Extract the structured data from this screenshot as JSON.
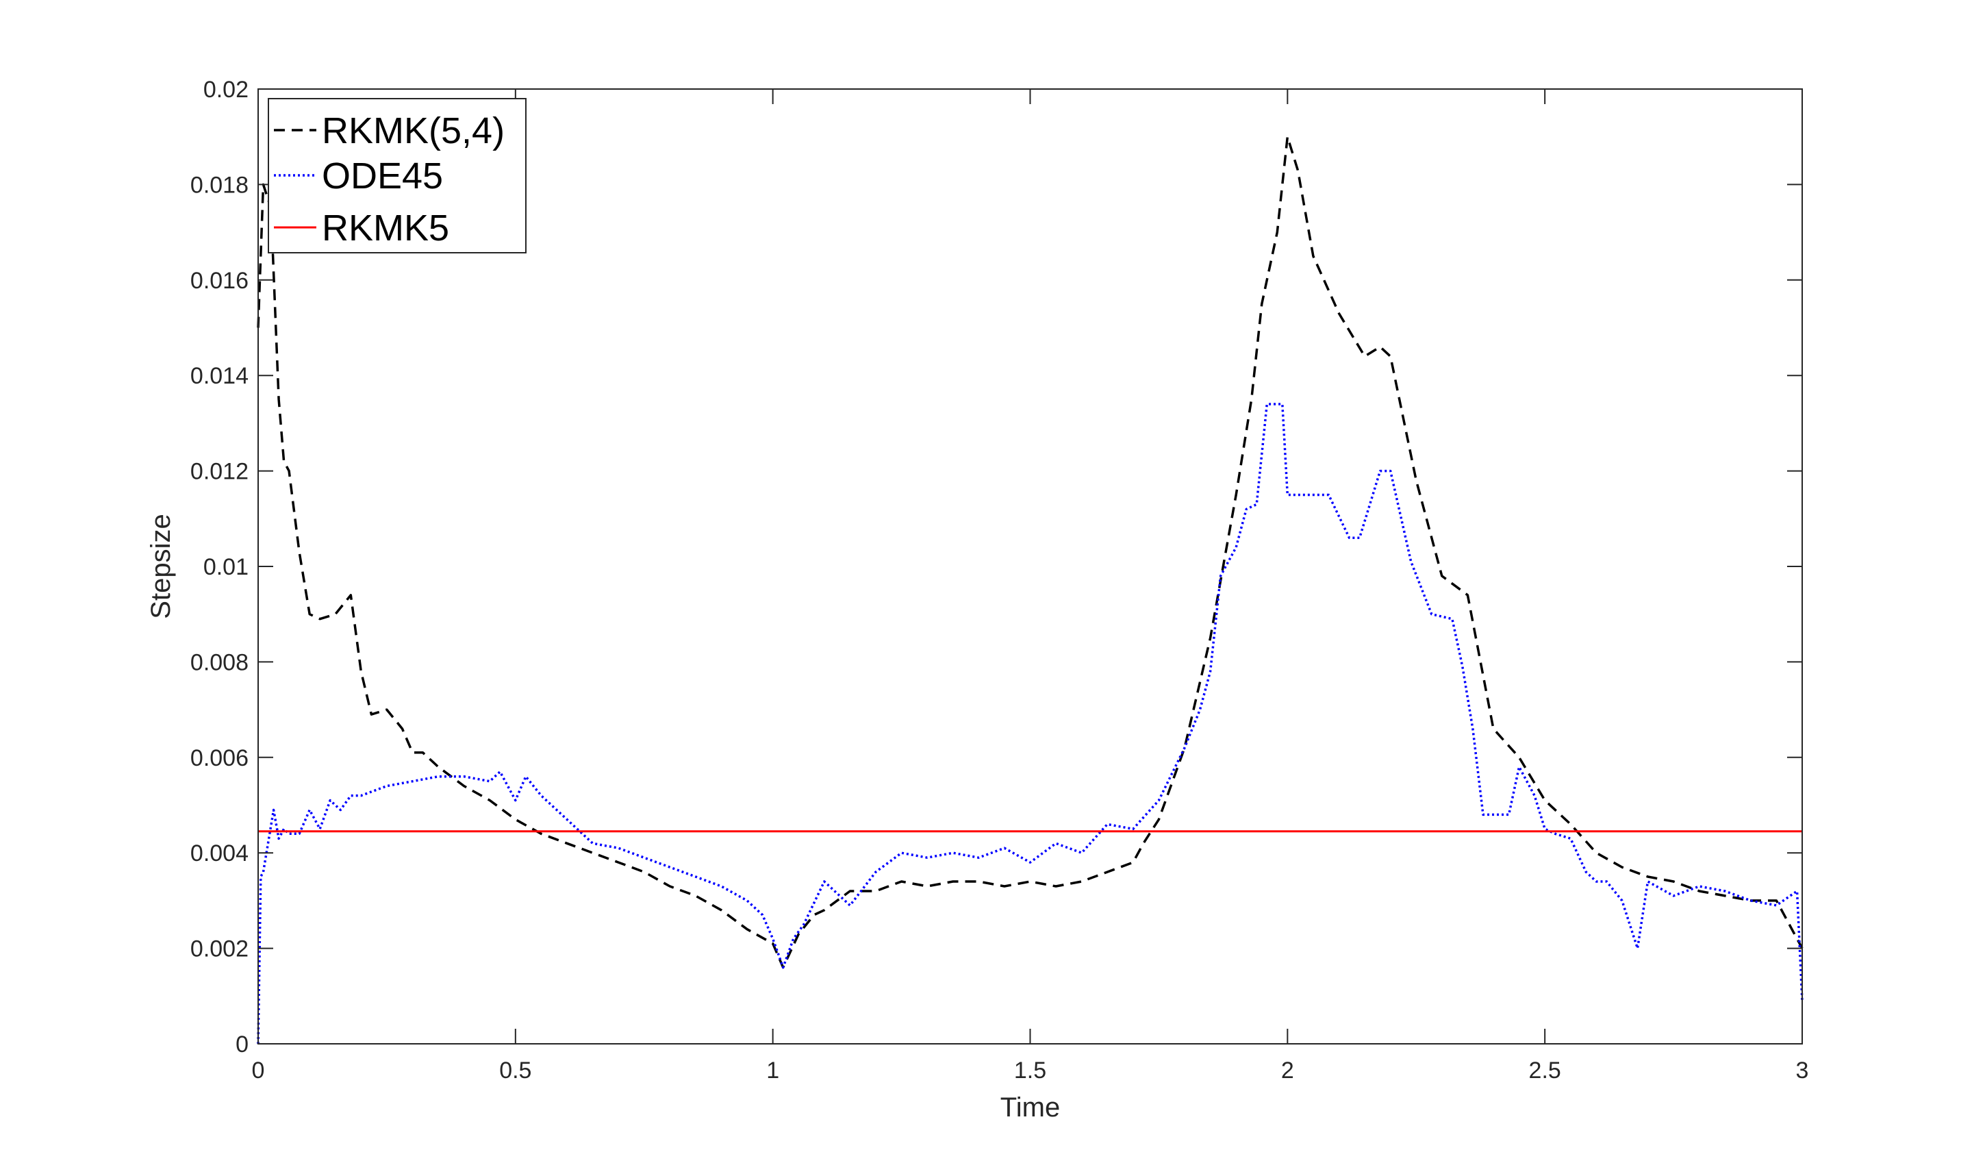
{
  "chart_data": {
    "type": "line",
    "xlabel": "Time",
    "ylabel": "Stepsize",
    "xlim": [
      0,
      3
    ],
    "ylim": [
      0,
      0.02
    ],
    "x_ticks": [
      0,
      0.5,
      1,
      1.5,
      2,
      2.5,
      3
    ],
    "x_tick_labels": [
      "0",
      "0.5",
      "1",
      "1.5",
      "2",
      "2.5",
      "3"
    ],
    "y_ticks": [
      0,
      0.002,
      0.004,
      0.006,
      0.008,
      0.01,
      0.012,
      0.014,
      0.016,
      0.018,
      0.02
    ],
    "y_tick_labels": [
      "0",
      "0.002",
      "0.004",
      "0.006",
      "0.008",
      "0.01",
      "0.012",
      "0.014",
      "0.016",
      "0.018",
      "0.02"
    ],
    "grid": false,
    "legend_position": "top-left",
    "series": [
      {
        "name": "RKMK(5,4)",
        "color": "#000000",
        "style": "dashed",
        "x": [
          0,
          0.01,
          0.025,
          0.04,
          0.05,
          0.06,
          0.08,
          0.1,
          0.12,
          0.15,
          0.18,
          0.2,
          0.22,
          0.25,
          0.28,
          0.3,
          0.32,
          0.35,
          0.4,
          0.45,
          0.5,
          0.55,
          0.6,
          0.65,
          0.7,
          0.75,
          0.8,
          0.85,
          0.9,
          0.95,
          1.0,
          1.02,
          1.05,
          1.08,
          1.1,
          1.15,
          1.2,
          1.25,
          1.3,
          1.35,
          1.4,
          1.45,
          1.5,
          1.55,
          1.6,
          1.65,
          1.7,
          1.72,
          1.75,
          1.8,
          1.85,
          1.88,
          1.9,
          1.93,
          1.95,
          1.98,
          2.0,
          2.02,
          2.05,
          2.1,
          2.15,
          2.18,
          2.2,
          2.25,
          2.3,
          2.35,
          2.4,
          2.45,
          2.5,
          2.55,
          2.6,
          2.65,
          2.7,
          2.75,
          2.8,
          2.85,
          2.9,
          2.95,
          3.0
        ],
        "y": [
          0.015,
          0.018,
          0.0175,
          0.0135,
          0.0122,
          0.012,
          0.0103,
          0.009,
          0.0089,
          0.009,
          0.0094,
          0.0078,
          0.0069,
          0.007,
          0.0066,
          0.0061,
          0.0061,
          0.0058,
          0.0054,
          0.0051,
          0.0047,
          0.0044,
          0.0042,
          0.004,
          0.0038,
          0.0036,
          0.0033,
          0.0031,
          0.0028,
          0.0024,
          0.0021,
          0.0016,
          0.0023,
          0.0027,
          0.0028,
          0.0032,
          0.0032,
          0.0034,
          0.0033,
          0.0034,
          0.0034,
          0.0033,
          0.0034,
          0.0033,
          0.0034,
          0.0036,
          0.0038,
          0.0042,
          0.0047,
          0.0062,
          0.0085,
          0.0103,
          0.0115,
          0.0135,
          0.0155,
          0.017,
          0.019,
          0.0183,
          0.0165,
          0.0153,
          0.0144,
          0.0146,
          0.0144,
          0.0118,
          0.0098,
          0.0094,
          0.0066,
          0.006,
          0.0051,
          0.0046,
          0.004,
          0.0037,
          0.0035,
          0.0034,
          0.0032,
          0.0031,
          0.003,
          0.003,
          0.002
        ]
      },
      {
        "name": "ODE45",
        "color": "#0000ff",
        "style": "dotted",
        "x": [
          0,
          0.005,
          0.01,
          0.03,
          0.04,
          0.05,
          0.06,
          0.08,
          0.1,
          0.12,
          0.14,
          0.16,
          0.18,
          0.2,
          0.25,
          0.3,
          0.35,
          0.4,
          0.45,
          0.47,
          0.5,
          0.52,
          0.55,
          0.6,
          0.65,
          0.7,
          0.75,
          0.8,
          0.85,
          0.9,
          0.95,
          0.98,
          1.0,
          1.02,
          1.04,
          1.06,
          1.1,
          1.12,
          1.15,
          1.2,
          1.25,
          1.3,
          1.35,
          1.4,
          1.45,
          1.5,
          1.55,
          1.6,
          1.65,
          1.7,
          1.75,
          1.8,
          1.83,
          1.85,
          1.87,
          1.9,
          1.92,
          1.94,
          1.96,
          1.99,
          2.0,
          2.02,
          2.08,
          2.12,
          2.14,
          2.18,
          2.2,
          2.24,
          2.28,
          2.32,
          2.34,
          2.36,
          2.38,
          2.4,
          2.43,
          2.45,
          2.48,
          2.5,
          2.52,
          2.55,
          2.58,
          2.6,
          2.62,
          2.65,
          2.68,
          2.7,
          2.75,
          2.8,
          2.85,
          2.9,
          2.95,
          2.99,
          3.0
        ],
        "y": [
          0,
          0.0035,
          0.0036,
          0.0049,
          0.0043,
          0.0045,
          0.0044,
          0.0044,
          0.0049,
          0.0045,
          0.0051,
          0.0049,
          0.0052,
          0.0052,
          0.0054,
          0.0055,
          0.0056,
          0.0056,
          0.0055,
          0.0057,
          0.0051,
          0.0056,
          0.0052,
          0.0047,
          0.0042,
          0.0041,
          0.0039,
          0.0037,
          0.0035,
          0.0033,
          0.003,
          0.0027,
          0.0022,
          0.0016,
          0.0022,
          0.0025,
          0.0034,
          0.0032,
          0.0029,
          0.0036,
          0.004,
          0.0039,
          0.004,
          0.0039,
          0.0041,
          0.0038,
          0.0042,
          0.004,
          0.0046,
          0.0045,
          0.0051,
          0.0062,
          0.007,
          0.0078,
          0.0098,
          0.0104,
          0.0112,
          0.0113,
          0.0134,
          0.0134,
          0.0115,
          0.0115,
          0.0115,
          0.0106,
          0.0106,
          0.012,
          0.012,
          0.0101,
          0.009,
          0.0089,
          0.0079,
          0.0066,
          0.0048,
          0.0048,
          0.0048,
          0.0058,
          0.0052,
          0.0045,
          0.0044,
          0.0043,
          0.0036,
          0.0034,
          0.0034,
          0.003,
          0.002,
          0.0034,
          0.0031,
          0.0033,
          0.0032,
          0.003,
          0.0029,
          0.0032,
          0.0009
        ]
      },
      {
        "name": "RKMK5",
        "color": "#ff0000",
        "style": "solid",
        "x": [
          0,
          3
        ],
        "y": [
          0.00445,
          0.00445
        ]
      }
    ]
  }
}
